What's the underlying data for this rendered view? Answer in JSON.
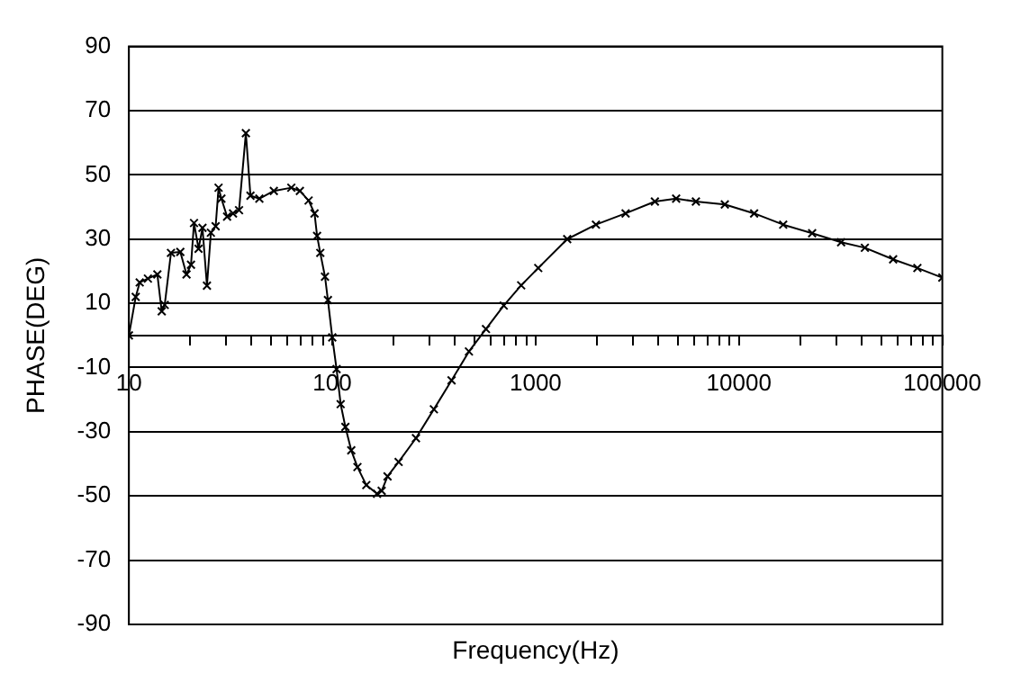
{
  "chart_data": {
    "type": "line",
    "xlabel": "Frequency(Hz)",
    "ylabel": "PHASE(DEG)",
    "log": "x",
    "grid": "y",
    "legend": false,
    "marker": "cross",
    "line_style": "solid",
    "xlim": [
      10,
      100000
    ],
    "ylim": [
      -90,
      90
    ],
    "xticks": [
      10,
      {
        "value": 20,
        "label": null
      },
      {
        "value": 30,
        "label": null
      },
      {
        "value": 40,
        "label": null
      },
      {
        "value": 50,
        "label": null
      },
      {
        "value": 60,
        "label": null
      },
      {
        "value": 70,
        "label": null
      },
      {
        "value": 80,
        "label": null
      },
      {
        "value": 90,
        "label": null
      },
      100,
      {
        "value": 200,
        "label": null
      },
      {
        "value": 300,
        "label": null
      },
      {
        "value": 400,
        "label": null
      },
      {
        "value": 500,
        "label": null
      },
      {
        "value": 600,
        "label": null
      },
      {
        "value": 700,
        "label": null
      },
      {
        "value": 800,
        "label": null
      },
      {
        "value": 900,
        "label": null
      },
      1000,
      {
        "value": 2000,
        "label": null
      },
      {
        "value": 3000,
        "label": null
      },
      {
        "value": 4000,
        "label": null
      },
      {
        "value": 5000,
        "label": null
      },
      {
        "value": 6000,
        "label": null
      },
      {
        "value": 7000,
        "label": null
      },
      {
        "value": 8000,
        "label": null
      },
      {
        "value": 9000,
        "label": null
      },
      10000,
      {
        "value": 20000,
        "label": null
      },
      {
        "value": 30000,
        "label": null
      },
      {
        "value": 40000,
        "label": null
      },
      {
        "value": 50000,
        "label": null
      },
      {
        "value": 60000,
        "label": null
      },
      {
        "value": 70000,
        "label": null
      },
      {
        "value": 80000,
        "label": null
      },
      {
        "value": 90000,
        "label": null
      },
      100000
    ],
    "yticks": [
      -90,
      -70,
      -50,
      -30,
      -10,
      10,
      30,
      50,
      70,
      90
    ],
    "series": [
      {
        "color": "#000000",
        "x": [
          10,
          10.8,
          11.3,
          12.4,
          13.8,
          14.5,
          15,
          16.1,
          17.9,
          19.2,
          20.2,
          20.9,
          22,
          23,
          24.2,
          25.3,
          26.7,
          27.6,
          28.5,
          30.4,
          32.5,
          34.8,
          37.6,
          39.6,
          43.8,
          51.6,
          62.9,
          69.3,
          76.5,
          81.8,
          84.2,
          87.3,
          92.1,
          95.2,
          100,
          105,
          110,
          116,
          124,
          133,
          147,
          166,
          175,
          187,
          212,
          258,
          316,
          386,
          470,
          570,
          697,
          849,
          1030,
          1430,
          1980,
          2770,
          3860,
          4910,
          6140,
          8520,
          11870,
          16500,
          22900,
          31800,
          41600,
          57300,
          75400,
          100000
        ],
        "values": [
          0,
          12,
          16.5,
          17.7,
          19,
          7.5,
          9.5,
          25.7,
          26,
          19,
          22,
          35,
          27,
          33.5,
          15.5,
          32,
          34,
          46,
          42.6,
          37,
          38,
          39,
          63,
          43.5,
          42.6,
          45,
          46,
          45,
          42,
          38,
          31,
          25.7,
          18.3,
          11,
          -0.6,
          -10.5,
          -21.4,
          -28.5,
          -35.8,
          -41,
          -46.6,
          -49.3,
          -48.4,
          -43.9,
          -39.4,
          -32,
          -23,
          -14,
          -5,
          2,
          9.3,
          15.6,
          21,
          30,
          34.5,
          38,
          41.7,
          42.6,
          41.7,
          40.8,
          38,
          34.5,
          31.8,
          29,
          27.3,
          23.7,
          21,
          18
        ]
      }
    ]
  }
}
